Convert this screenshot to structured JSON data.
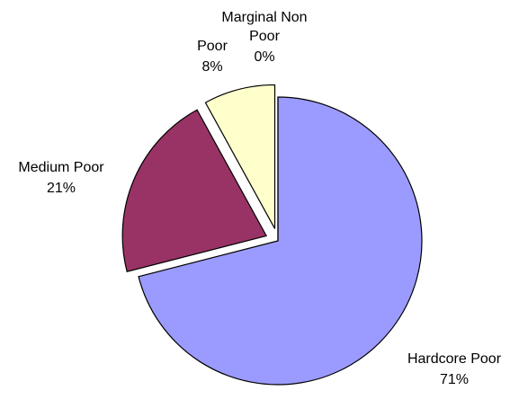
{
  "chart_data": {
    "type": "pie",
    "title": "",
    "slices": [
      {
        "name": "Hardcore Poor",
        "value": 71,
        "label": "71%",
        "color": "#9b9bff"
      },
      {
        "name": "Medium Poor",
        "value": 21,
        "label": "21%",
        "color": "#993366"
      },
      {
        "name": "Poor",
        "value": 8,
        "label": "8%",
        "color": "#ffffcc"
      },
      {
        "name": "Marginal Non Poor",
        "value": 0,
        "label": "0%",
        "color": "#00a0a0"
      }
    ],
    "legend": "none",
    "labels": "outside",
    "exploded": true
  }
}
